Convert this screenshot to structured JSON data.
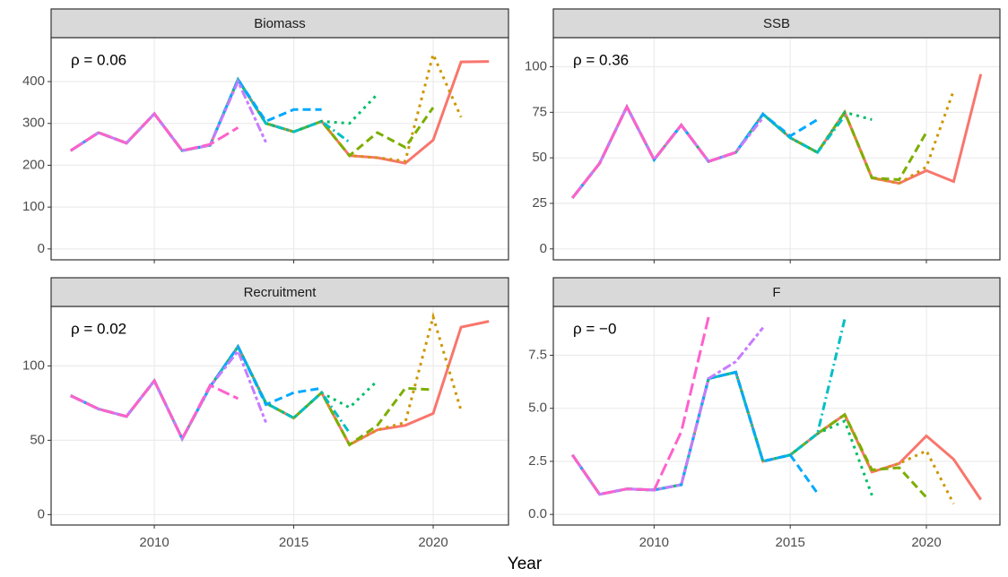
{
  "x_axis_label": "Year",
  "chart_data": [
    {
      "type": "line",
      "title": "Biomass",
      "annotation": "ρ = 0.06",
      "x": [
        2007,
        2008,
        2009,
        2010,
        2011,
        2012,
        2013,
        2014,
        2015,
        2016,
        2017,
        2018,
        2019,
        2020,
        2021,
        2022
      ],
      "xlim": [
        2006.3,
        2022.7
      ],
      "xticks": [
        2010,
        2015,
        2020
      ],
      "ylim": [
        -26,
        505
      ],
      "yticks": [
        0,
        100,
        200,
        300,
        400
      ],
      "grid": true,
      "x_tick_labels": false,
      "series": [
        {
          "color": "#F8766D",
          "linetype": "solid",
          "values": [
            235,
            278,
            253,
            323,
            235,
            248,
            405,
            300,
            280,
            305,
            223,
            218,
            205,
            260,
            447,
            448
          ]
        },
        {
          "color": "#CD9600",
          "linetype": "dotted",
          "values": [
            235,
            278,
            253,
            323,
            235,
            248,
            405,
            300,
            280,
            305,
            223,
            218,
            210,
            465,
            315,
            null
          ]
        },
        {
          "color": "#7CAE00",
          "linetype": "dashed",
          "values": [
            235,
            278,
            253,
            323,
            235,
            248,
            405,
            300,
            280,
            305,
            223,
            278,
            243,
            338,
            null,
            null
          ]
        },
        {
          "color": "#00BE67",
          "linetype": "dotted",
          "values": [
            235,
            278,
            253,
            323,
            235,
            248,
            405,
            300,
            280,
            305,
            300,
            370,
            null,
            null,
            null,
            null
          ]
        },
        {
          "color": "#00BFC4",
          "linetype": "dotdash",
          "values": [
            235,
            278,
            253,
            323,
            235,
            248,
            405,
            300,
            280,
            305,
            255,
            null,
            null,
            null,
            null,
            null
          ]
        },
        {
          "color": "#00A9FF",
          "linetype": "dashed",
          "values": [
            235,
            278,
            253,
            323,
            235,
            248,
            405,
            305,
            333,
            333,
            null,
            null,
            null,
            null,
            null,
            null
          ]
        },
        {
          "color": "#C77CFF",
          "linetype": "twodash",
          "values": [
            235,
            278,
            253,
            323,
            235,
            248,
            400,
            255,
            null,
            null,
            null,
            null,
            null,
            null,
            null,
            null
          ]
        },
        {
          "color": "#FF61CC",
          "linetype": "longdash",
          "values": [
            235,
            278,
            253,
            323,
            235,
            250,
            290,
            null,
            null,
            null,
            null,
            null,
            null,
            null,
            null,
            null
          ]
        }
      ]
    },
    {
      "type": "line",
      "title": "SSB",
      "annotation": "ρ = 0.36",
      "x": [
        2007,
        2008,
        2009,
        2010,
        2011,
        2012,
        2013,
        2014,
        2015,
        2016,
        2017,
        2018,
        2019,
        2020,
        2021,
        2022
      ],
      "xlim": [
        2006.3,
        2022.7
      ],
      "xticks": [
        2010,
        2015,
        2020
      ],
      "ylim": [
        -6,
        116
      ],
      "yticks": [
        0,
        25,
        50,
        75,
        100
      ],
      "grid": true,
      "x_tick_labels": false,
      "series": [
        {
          "color": "#F8766D",
          "linetype": "solid",
          "values": [
            28,
            47,
            78,
            49,
            68,
            48,
            53,
            74,
            61,
            53,
            75,
            39,
            36,
            43,
            37,
            96
          ]
        },
        {
          "color": "#CD9600",
          "linetype": "dotted",
          "values": [
            28,
            47,
            78,
            49,
            68,
            48,
            53,
            74,
            61,
            53,
            75,
            39,
            36,
            45,
            87,
            null
          ]
        },
        {
          "color": "#7CAE00",
          "linetype": "dashed",
          "values": [
            28,
            47,
            78,
            49,
            68,
            48,
            53,
            74,
            61,
            53,
            75,
            39,
            38,
            64,
            null,
            null
          ]
        },
        {
          "color": "#00BE67",
          "linetype": "dotted",
          "values": [
            28,
            47,
            78,
            49,
            68,
            48,
            53,
            74,
            61,
            53,
            75,
            71,
            null,
            null,
            null,
            null
          ]
        },
        {
          "color": "#00BFC4",
          "linetype": "dotdash",
          "values": [
            28,
            47,
            78,
            49,
            68,
            48,
            53,
            74,
            61,
            53,
            73,
            null,
            null,
            null,
            null,
            null
          ]
        },
        {
          "color": "#00A9FF",
          "linetype": "dashed",
          "values": [
            28,
            47,
            78,
            49,
            68,
            48,
            53,
            74,
            62,
            71,
            null,
            null,
            null,
            null,
            null,
            null
          ]
        },
        {
          "color": "#C77CFF",
          "linetype": "twodash",
          "values": [
            28,
            47,
            78,
            49,
            68,
            48,
            53,
            72,
            null,
            null,
            null,
            null,
            null,
            null,
            null,
            null
          ]
        },
        {
          "color": "#FF61CC",
          "linetype": "longdash",
          "values": [
            28,
            47,
            78,
            49,
            68,
            48,
            53,
            null,
            null,
            null,
            null,
            null,
            null,
            null,
            null,
            null
          ]
        }
      ]
    },
    {
      "type": "line",
      "title": "Recruitment",
      "annotation": "ρ = 0.02",
      "x": [
        2007,
        2008,
        2009,
        2010,
        2011,
        2012,
        2013,
        2014,
        2015,
        2016,
        2017,
        2018,
        2019,
        2020,
        2021,
        2022
      ],
      "xlim": [
        2006.3,
        2022.7
      ],
      "xticks": [
        2010,
        2015,
        2020
      ],
      "ylim": [
        -7,
        140
      ],
      "yticks": [
        0,
        50,
        100
      ],
      "grid": true,
      "x_tick_labels": true,
      "series": [
        {
          "color": "#F8766D",
          "linetype": "solid",
          "values": [
            80,
            71,
            66,
            90,
            51,
            86,
            113,
            75,
            65,
            82,
            47,
            57,
            60,
            68,
            126,
            130
          ]
        },
        {
          "color": "#CD9600",
          "linetype": "dotted",
          "values": [
            80,
            71,
            66,
            90,
            51,
            86,
            113,
            75,
            65,
            82,
            47,
            57,
            62,
            133,
            70,
            null
          ]
        },
        {
          "color": "#7CAE00",
          "linetype": "dashed",
          "values": [
            80,
            71,
            66,
            90,
            51,
            86,
            113,
            75,
            65,
            82,
            47,
            60,
            85,
            84,
            null,
            null
          ]
        },
        {
          "color": "#00BE67",
          "linetype": "dotted",
          "values": [
            80,
            71,
            66,
            90,
            51,
            86,
            113,
            75,
            65,
            82,
            72,
            90,
            null,
            null,
            null,
            null
          ]
        },
        {
          "color": "#00BFC4",
          "linetype": "dotdash",
          "values": [
            80,
            71,
            66,
            90,
            51,
            86,
            113,
            75,
            65,
            82,
            55,
            null,
            null,
            null,
            null,
            null
          ]
        },
        {
          "color": "#00A9FF",
          "linetype": "dashed",
          "values": [
            80,
            71,
            66,
            90,
            51,
            86,
            113,
            74,
            82,
            85,
            null,
            null,
            null,
            null,
            null,
            null
          ]
        },
        {
          "color": "#C77CFF",
          "linetype": "twodash",
          "values": [
            80,
            71,
            66,
            90,
            51,
            86,
            110,
            62,
            null,
            null,
            null,
            null,
            null,
            null,
            null,
            null
          ]
        },
        {
          "color": "#FF61CC",
          "linetype": "longdash",
          "values": [
            80,
            71,
            66,
            90,
            51,
            87,
            78,
            null,
            null,
            null,
            null,
            null,
            null,
            null,
            null,
            null
          ]
        }
      ]
    },
    {
      "type": "line",
      "title": "F",
      "annotation": "ρ = −0",
      "x": [
        2007,
        2008,
        2009,
        2010,
        2011,
        2012,
        2013,
        2014,
        2015,
        2016,
        2017,
        2018,
        2019,
        2020,
        2021,
        2022
      ],
      "xlim": [
        2006.3,
        2022.7
      ],
      "xticks": [
        2010,
        2015,
        2020
      ],
      "ylim": [
        -0.5,
        9.8
      ],
      "yticks": [
        {
          "value": 0,
          "label": "0.0"
        },
        2.5,
        {
          "value": 5,
          "label": "5.0"
        },
        7.5
      ],
      "grid": true,
      "x_tick_labels": true,
      "series": [
        {
          "color": "#F8766D",
          "linetype": "solid",
          "values": [
            2.8,
            0.95,
            1.2,
            1.15,
            1.4,
            6.4,
            6.7,
            2.5,
            2.8,
            3.8,
            4.7,
            2.0,
            2.4,
            3.7,
            2.6,
            0.7
          ]
        },
        {
          "color": "#CD9600",
          "linetype": "dotted",
          "values": [
            2.8,
            0.95,
            1.2,
            1.15,
            1.4,
            6.4,
            6.7,
            2.5,
            2.8,
            3.8,
            4.7,
            2.0,
            2.4,
            3.0,
            0.5,
            null
          ]
        },
        {
          "color": "#7CAE00",
          "linetype": "dashed",
          "values": [
            2.8,
            0.95,
            1.2,
            1.15,
            1.4,
            6.4,
            6.7,
            2.5,
            2.8,
            3.8,
            4.7,
            2.1,
            2.2,
            0.8,
            null,
            null
          ]
        },
        {
          "color": "#00BE67",
          "linetype": "dotted",
          "values": [
            2.8,
            0.95,
            1.2,
            1.15,
            1.4,
            6.4,
            6.7,
            2.5,
            2.8,
            3.8,
            4.4,
            0.9,
            null,
            null,
            null,
            null
          ]
        },
        {
          "color": "#00BFC4",
          "linetype": "dotdash",
          "values": [
            2.8,
            0.95,
            1.2,
            1.15,
            1.4,
            6.4,
            6.7,
            2.5,
            2.8,
            3.8,
            9.2,
            null,
            null,
            null,
            null,
            null
          ]
        },
        {
          "color": "#00A9FF",
          "linetype": "dashed",
          "values": [
            2.8,
            0.95,
            1.2,
            1.15,
            1.4,
            6.4,
            6.7,
            2.5,
            2.8,
            1.0,
            null,
            null,
            null,
            null,
            null,
            null
          ]
        },
        {
          "color": "#C77CFF",
          "linetype": "twodash",
          "values": [
            2.8,
            0.95,
            1.2,
            1.15,
            1.4,
            6.4,
            7.2,
            8.8,
            null,
            null,
            null,
            null,
            null,
            null,
            null,
            null
          ]
        },
        {
          "color": "#FF61CC",
          "linetype": "longdash",
          "values": [
            2.8,
            0.95,
            1.2,
            1.15,
            3.9,
            9.3,
            null,
            null,
            null,
            null,
            null,
            null,
            null,
            null,
            null,
            null
          ]
        }
      ]
    }
  ]
}
